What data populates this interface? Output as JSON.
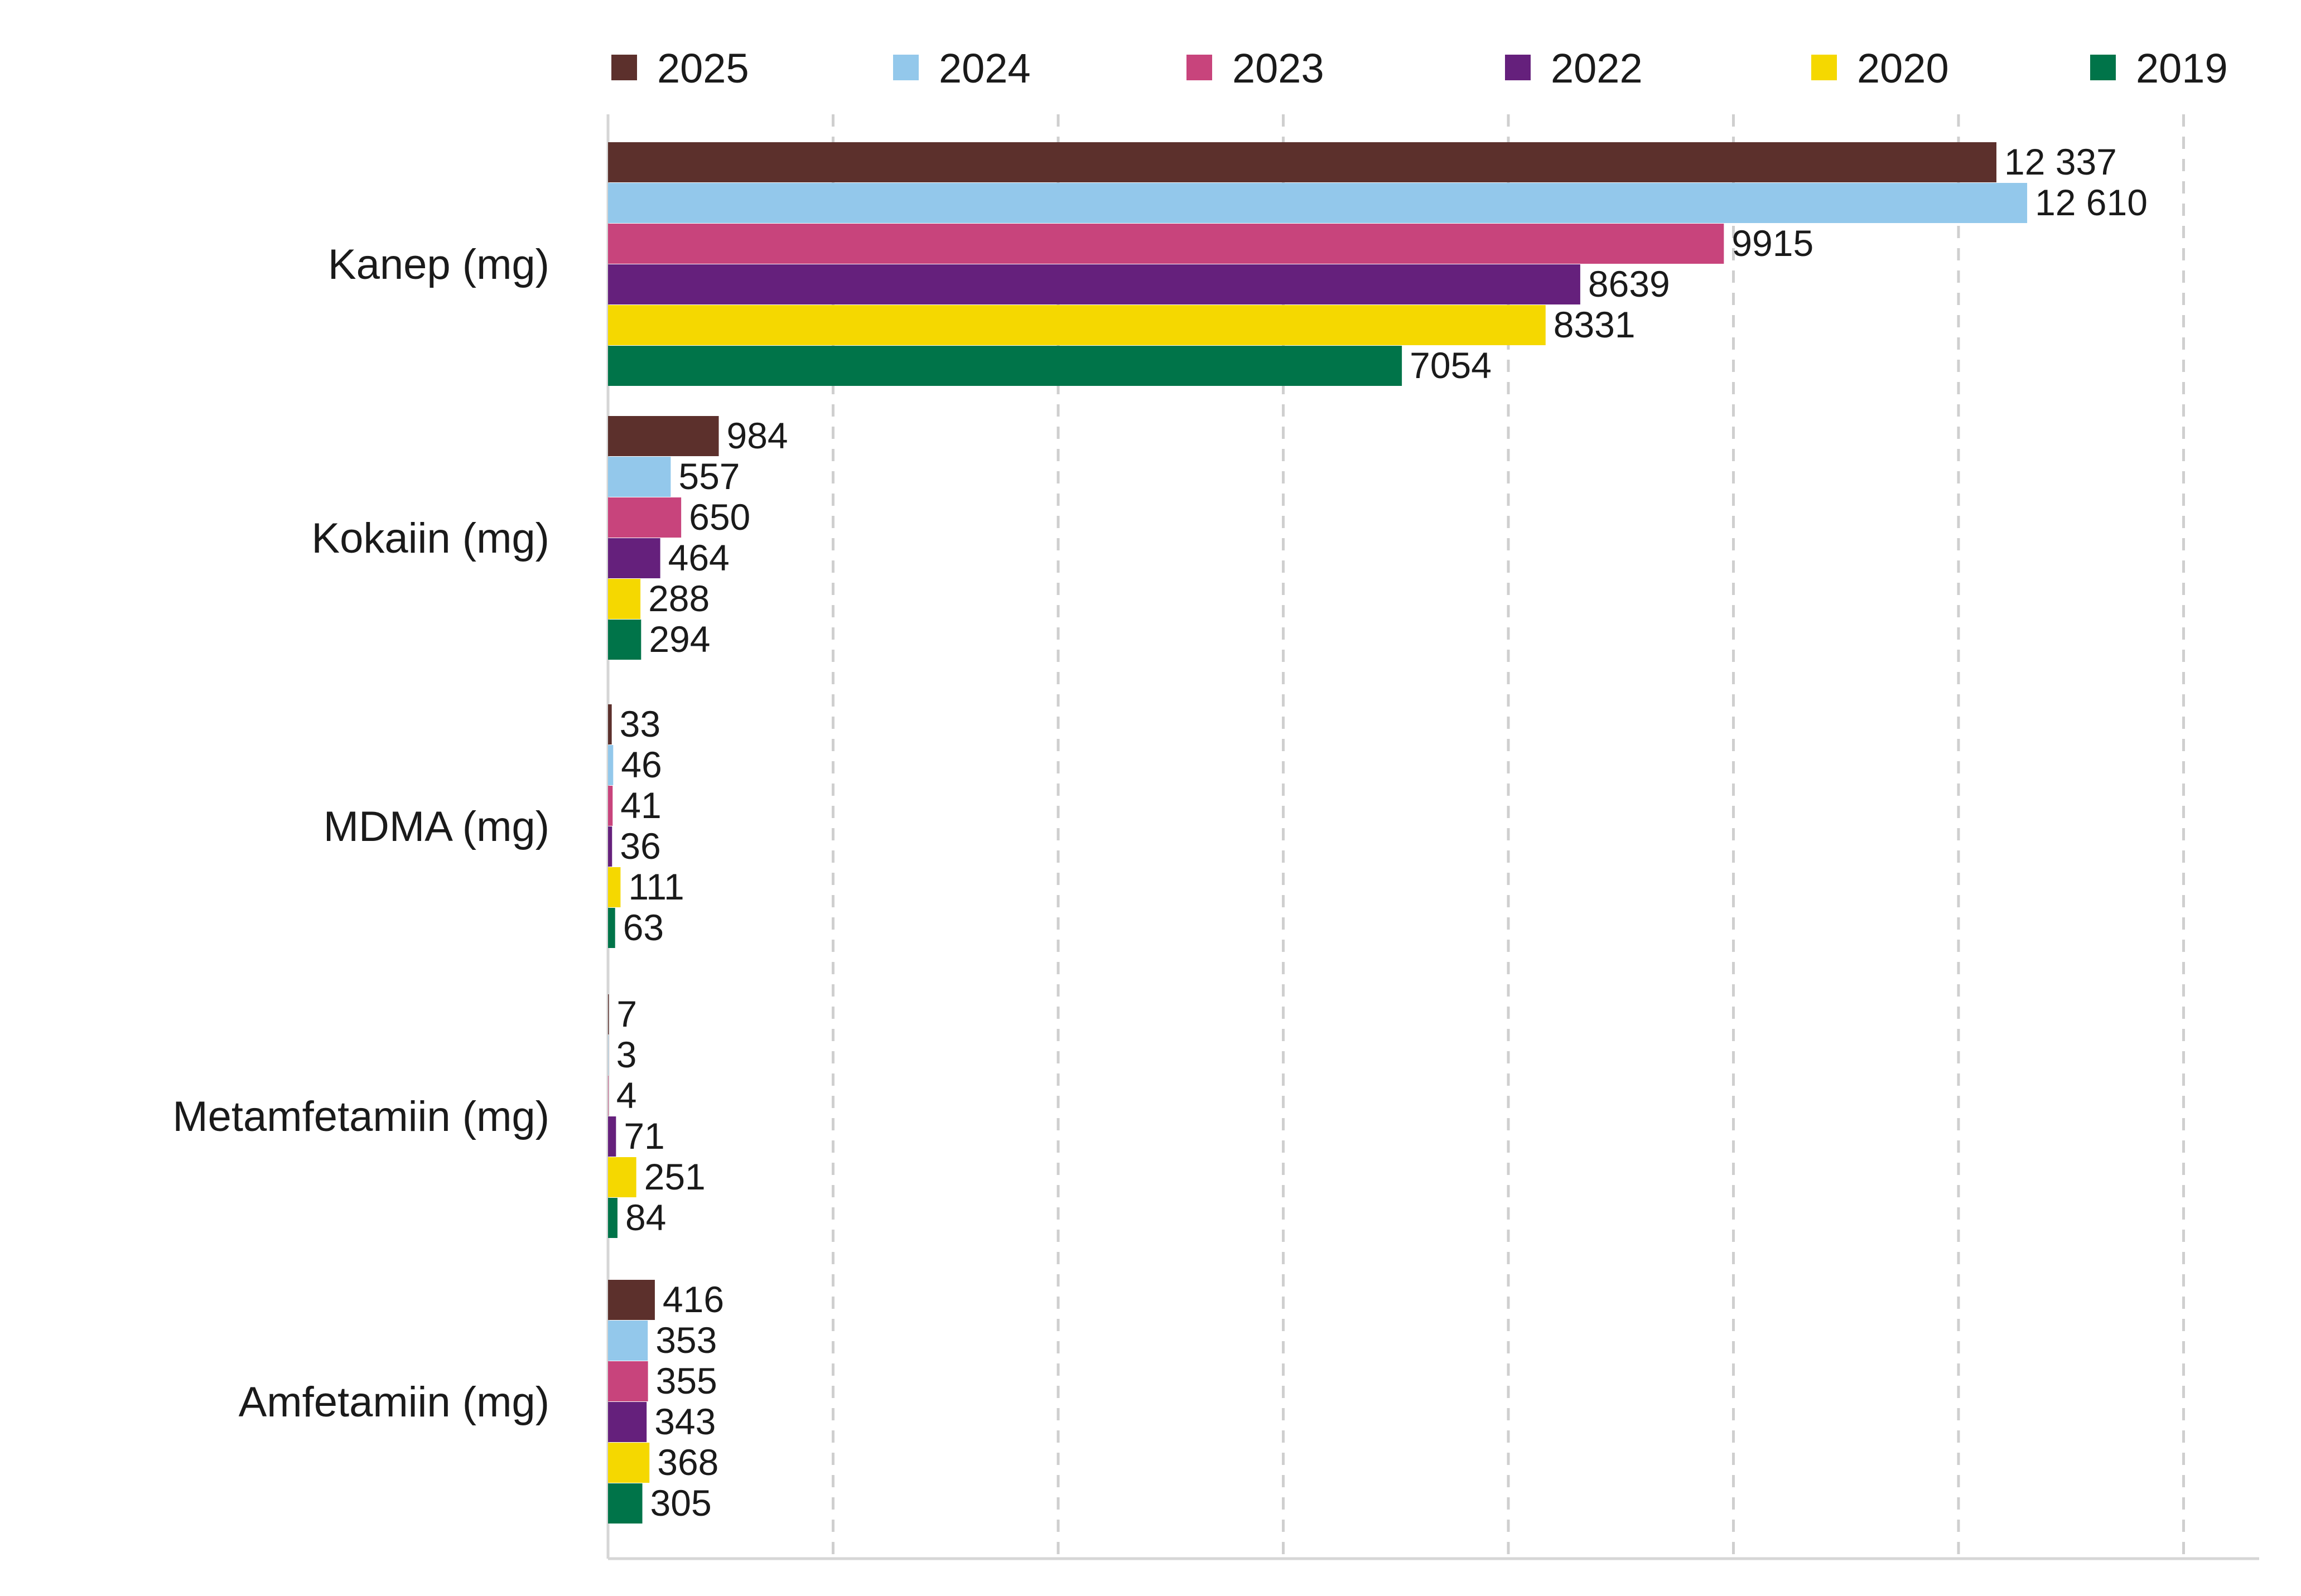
{
  "chart_data": {
    "type": "bar",
    "orientation": "horizontal",
    "categories": [
      "Kanep (mg)",
      "Kokaiin (mg)",
      "MDMA (mg)",
      "Metamfetamiin (mg)",
      "Amfetamiin (mg)"
    ],
    "series": [
      {
        "name": "2025",
        "color": "#5c302c",
        "values": [
          12337,
          984,
          33,
          7,
          416
        ],
        "labels": [
          "12 337",
          "984",
          "33",
          "7",
          "416"
        ]
      },
      {
        "name": "2024",
        "color": "#93c8eb",
        "values": [
          12610,
          557,
          46,
          3,
          353
        ],
        "labels": [
          "12 610",
          "557",
          "46",
          "3",
          "353"
        ]
      },
      {
        "name": "2023",
        "color": "#c8447c",
        "values": [
          9915,
          650,
          41,
          4,
          355
        ],
        "labels": [
          "9915",
          "650",
          "41",
          "4",
          "355"
        ]
      },
      {
        "name": "2022",
        "color": "#65207c",
        "values": [
          8639,
          464,
          36,
          71,
          343
        ],
        "labels": [
          "8639",
          "464",
          "36",
          "71",
          "343"
        ]
      },
      {
        "name": "2020",
        "color": "#f5d800",
        "values": [
          8331,
          288,
          111,
          251,
          368
        ],
        "labels": [
          "8331",
          "288",
          "111",
          "251",
          "368"
        ]
      },
      {
        "name": "2019",
        "color": "#007449",
        "values": [
          7054,
          294,
          63,
          84,
          305
        ],
        "labels": [
          "7054",
          "294",
          "63",
          "84",
          "305"
        ]
      }
    ],
    "xlim": [
      0,
      14000
    ],
    "x_gridlines": [
      2000,
      4000,
      6000,
      8000,
      10000,
      12000,
      14000
    ],
    "grid": true,
    "grid_style": "dashed",
    "x_tick_labels_shown": false,
    "legend_position": "top",
    "data_labels": true
  }
}
